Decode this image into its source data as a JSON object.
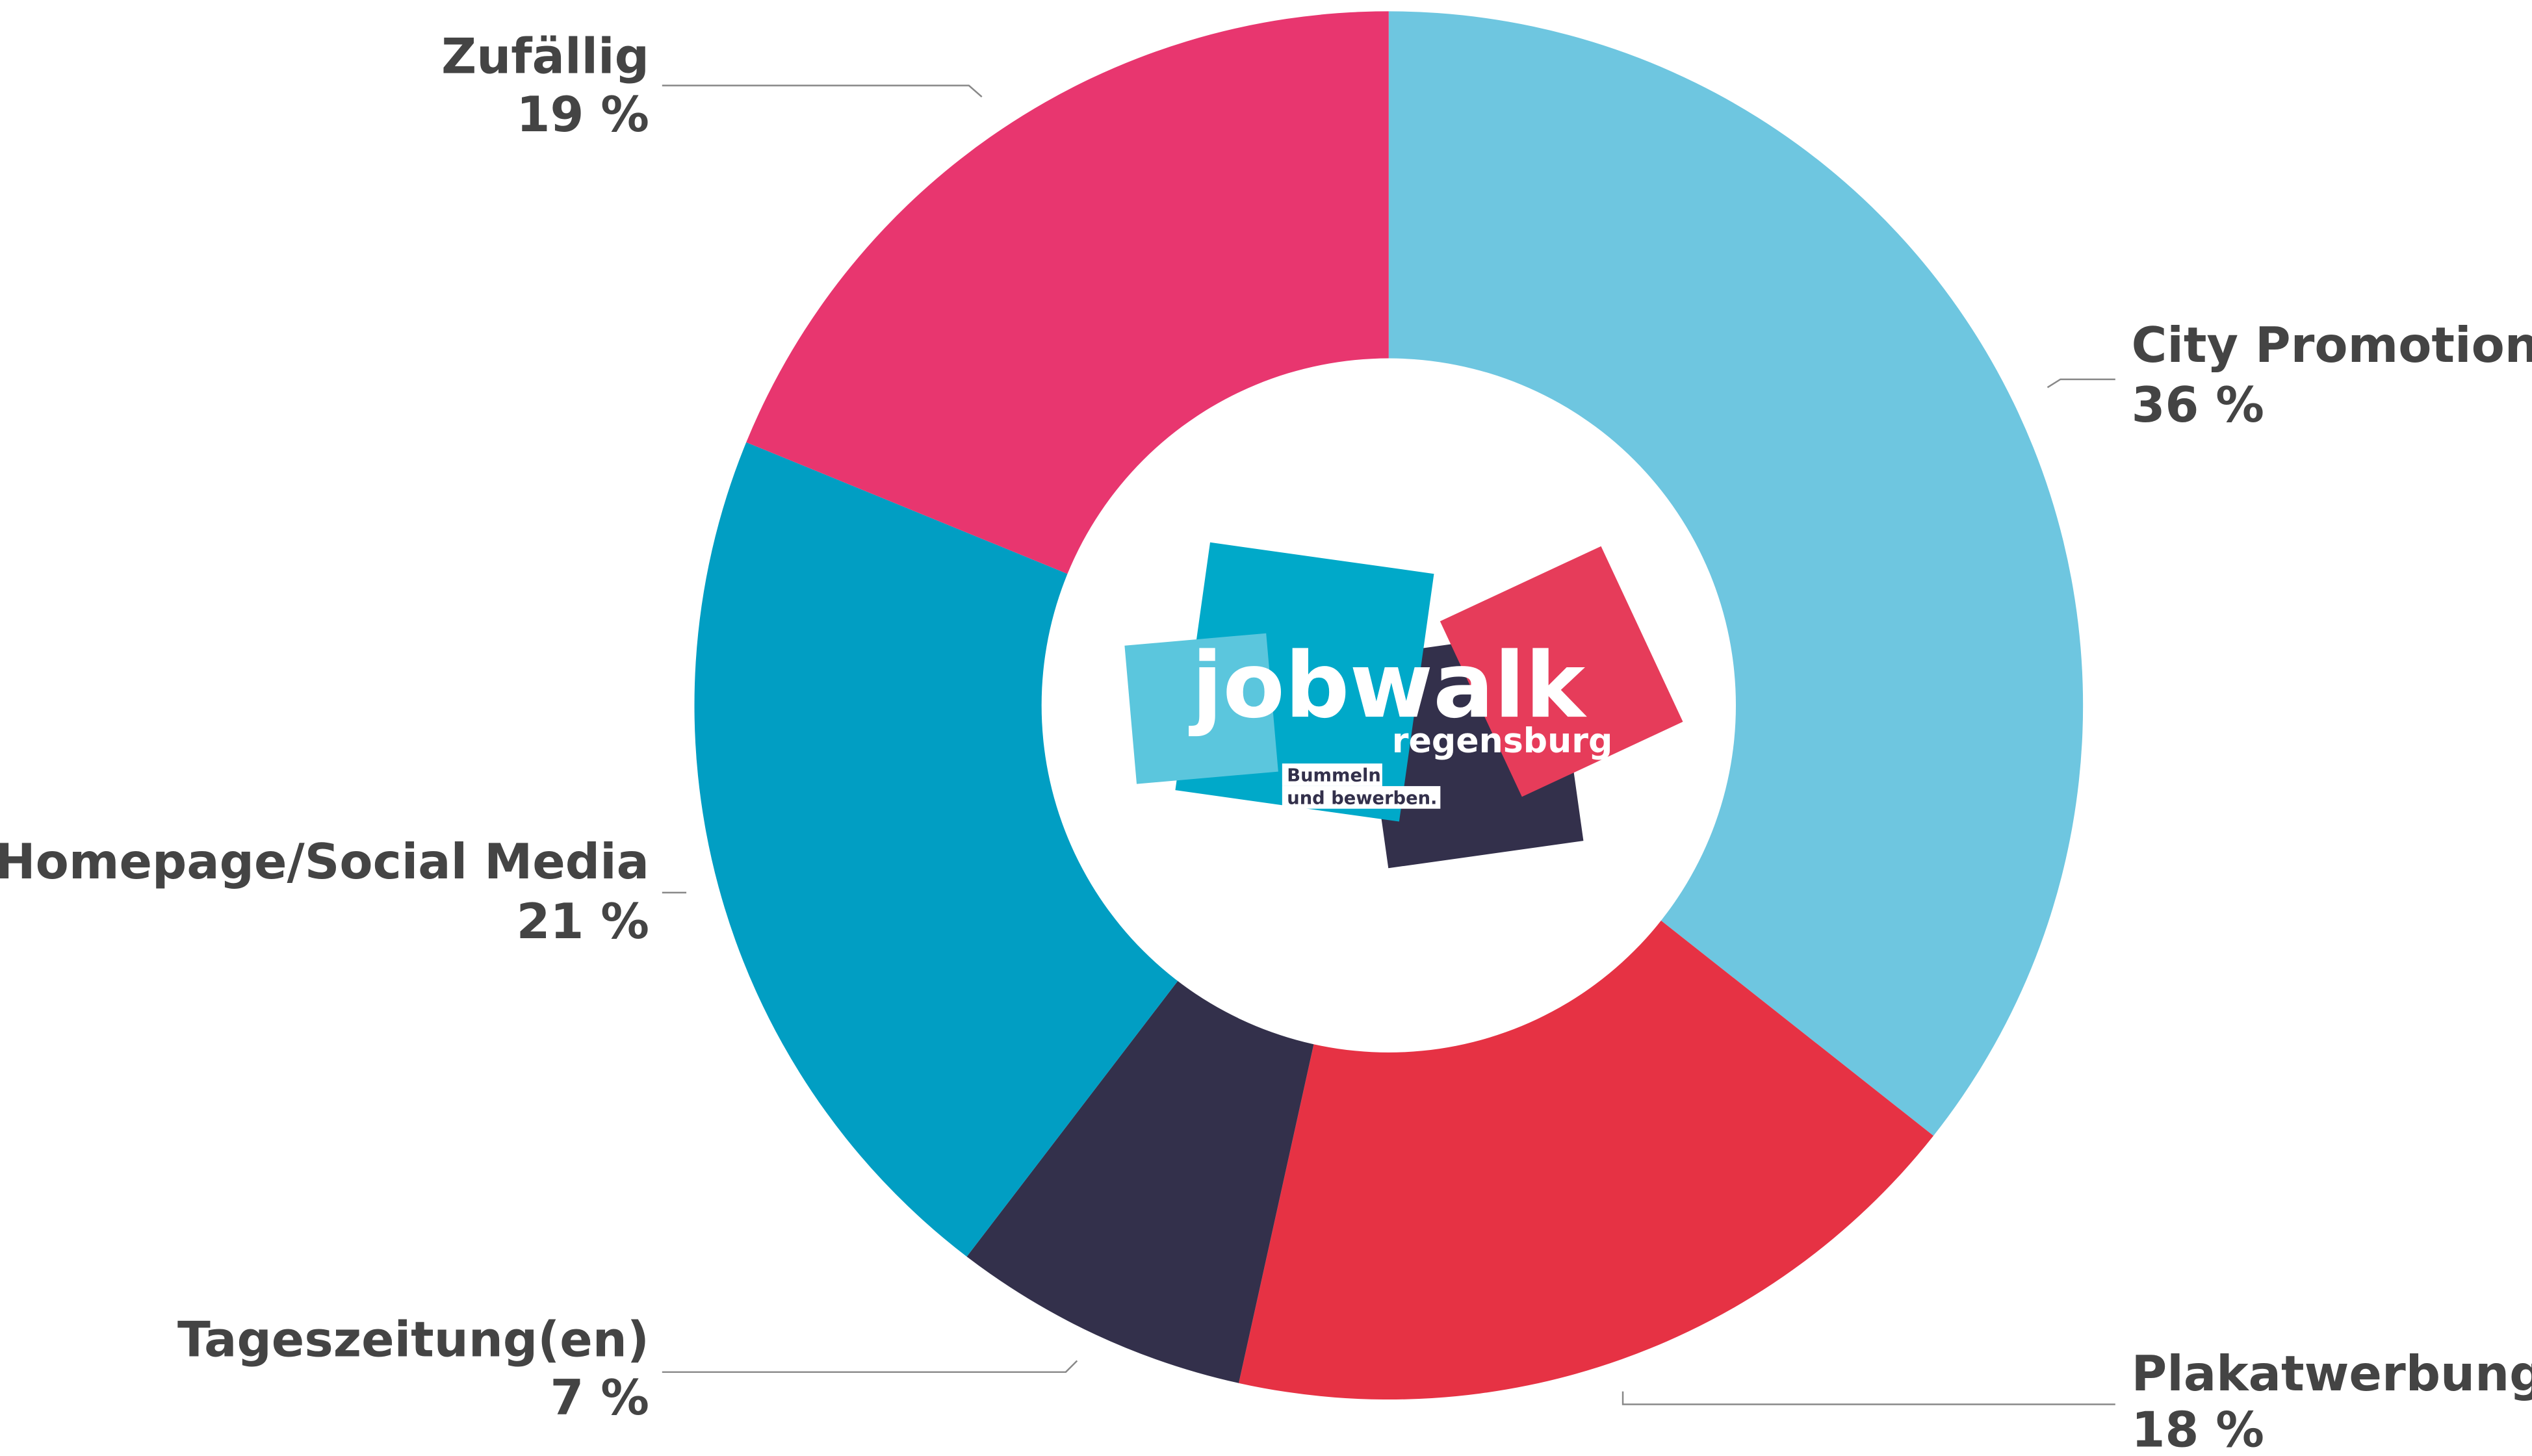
{
  "chart_data": {
    "type": "pie",
    "categories": [
      "City Promotion",
      "Plakatwerbung",
      "Tageszeitung(en)",
      "Homepage/Social Media",
      "Zufällig"
    ],
    "values": [
      36,
      18,
      7,
      21,
      19
    ],
    "value_labels": [
      "36 %",
      "18 %",
      "7 %",
      "21 %",
      "19 %"
    ],
    "colors": [
      "#6ec6e0",
      "#e63244",
      "#33304b",
      "#019ec3",
      "#e8366f"
    ],
    "donut": true
  },
  "logo": {
    "name": "jobwalk",
    "city": "regensburg",
    "slogan": [
      "Bummeln",
      "und bewerben."
    ]
  }
}
